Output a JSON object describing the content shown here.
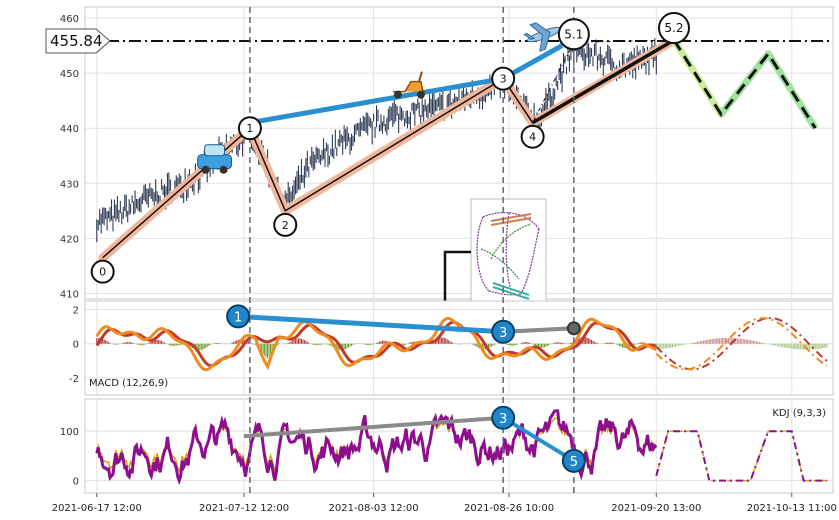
{
  "chart_data": [
    {
      "type": "line",
      "panel": "price",
      "title": "",
      "ylim": [
        409,
        462
      ],
      "y_ticks": [
        410,
        420,
        430,
        440,
        450,
        460
      ],
      "price_label": "455.84",
      "price_value": 455.84,
      "waves": [
        {
          "label": "0",
          "x": "2021-06-18",
          "y": 416.5
        },
        {
          "label": "1",
          "x": "2021-07-13",
          "y": 440
        },
        {
          "label": "2",
          "x": "2021-07-19",
          "y": 425
        },
        {
          "label": "3",
          "x": "2021-08-25",
          "y": 449
        },
        {
          "label": "4",
          "x": "2021-08-30",
          "y": 441
        },
        {
          "label": "5.1",
          "x": "2021-09-06",
          "y": 455.6
        },
        {
          "label": "5.2",
          "x": "2021-09-23",
          "y": 456
        }
      ],
      "upper_trend": [
        [
          "2021-07-13",
          441
        ],
        [
          "2021-08-25",
          449
        ],
        [
          "2021-09-04",
          455
        ]
      ],
      "lower_trend": [
        [
          "2021-08-30",
          441
        ],
        [
          "2021-09-23",
          456
        ]
      ],
      "projection": [
        [
          "2021-09-23",
          456
        ],
        [
          "2021-10-01",
          442.5
        ],
        [
          "2021-10-09",
          453.5
        ],
        [
          "2021-10-17",
          440
        ]
      ],
      "price_series": [
        [
          "2021-06-17",
          423
        ],
        [
          "2021-06-20",
          424
        ],
        [
          "2021-06-25",
          427
        ],
        [
          "2021-06-30",
          429
        ],
        [
          "2021-07-05",
          432
        ],
        [
          "2021-07-09",
          436
        ],
        [
          "2021-07-13",
          439
        ],
        [
          "2021-07-16",
          433
        ],
        [
          "2021-07-19",
          426
        ],
        [
          "2021-07-23",
          433
        ],
        [
          "2021-07-28",
          437
        ],
        [
          "2021-08-02",
          440
        ],
        [
          "2021-08-06",
          442
        ],
        [
          "2021-08-11",
          443
        ],
        [
          "2021-08-16",
          444
        ],
        [
          "2021-08-20",
          446
        ],
        [
          "2021-08-25",
          448
        ],
        [
          "2021-08-28",
          444
        ],
        [
          "2021-08-31",
          441
        ],
        [
          "2021-09-03",
          448
        ],
        [
          "2021-09-06",
          454
        ],
        [
          "2021-09-10",
          453
        ],
        [
          "2021-09-14",
          451
        ],
        [
          "2021-09-17",
          452
        ],
        [
          "2021-09-20",
          453
        ]
      ],
      "icons": [
        "car-icon",
        "scooter-icon",
        "airplane-icon"
      ]
    },
    {
      "type": "line",
      "panel": "macd",
      "legend": "MACD (12,26,9)",
      "ylim": [
        -3,
        2.5
      ],
      "y_ticks": [
        2,
        0,
        -2
      ],
      "markers": [
        {
          "label": "1",
          "x": "2021-07-11",
          "y": 1.6
        },
        {
          "label": "3",
          "x": "2021-08-25",
          "y": 0.7
        },
        {
          "label": "",
          "x": "2021-09-06",
          "y": 0.9
        }
      ]
    },
    {
      "type": "line",
      "panel": "kdj",
      "legend": "KDJ (9,3,3)",
      "ylim": [
        -25,
        165
      ],
      "y_ticks": [
        100,
        0
      ],
      "markers": [
        {
          "label": "3",
          "x": "2021-08-25",
          "y": 127
        },
        {
          "label": "5",
          "x": "2021-09-06",
          "y": 40
        }
      ]
    }
  ],
  "x_axis": {
    "range": [
      "2021-06-15",
      "2021-10-20"
    ],
    "ticks": [
      {
        "label": "2021-06-17 12:00",
        "x": "2021-06-17"
      },
      {
        "label": "2021-07-12 12:00",
        "x": "2021-07-12"
      },
      {
        "label": "2021-08-03 12:00",
        "x": "2021-08-03"
      },
      {
        "label": "2021-08-26 10:00",
        "x": "2021-08-26"
      },
      {
        "label": "2021-09-20 13:00",
        "x": "2021-09-20"
      },
      {
        "label": "2021-10-13 11:00",
        "x": "2021-10-13"
      }
    ],
    "vlines": [
      "2021-07-13",
      "2021-08-25",
      "2021-09-06"
    ]
  },
  "colors": {
    "candle": "#2e3b55",
    "wave_fill": "#f2b79a",
    "trend_blue": "#2a8fd0",
    "projection_light": "#ccee99",
    "projection_dark": "#9ee29e",
    "macd_line": "#f28a1e",
    "macd_signal": "#c0392b",
    "kdj_k": "#8e0f8e",
    "kdj_d": "#d4a017",
    "marker_blue": "#1f86c8",
    "vline": "#5a6a80"
  }
}
